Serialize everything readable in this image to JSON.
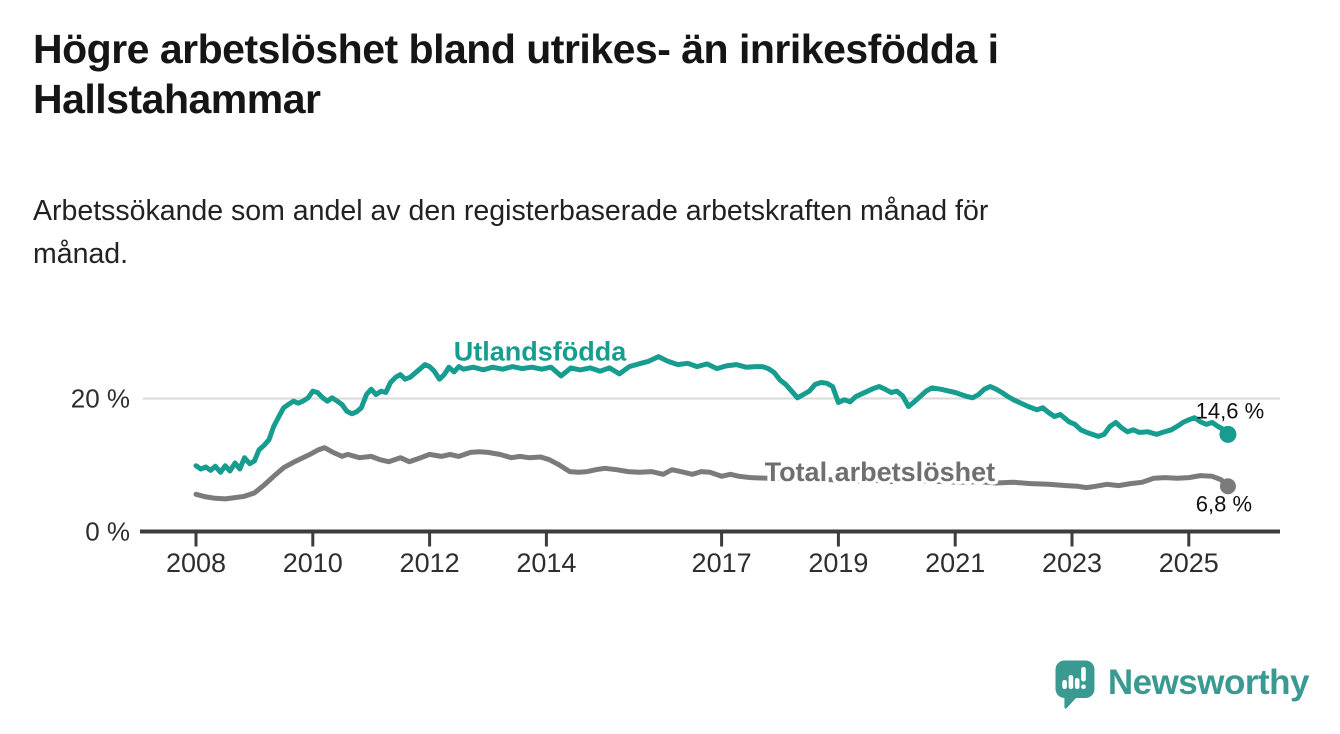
{
  "header": {
    "title": "Högre arbetslöshet bland utrikes- än inrikesfödda i\nHallstahammar",
    "subtitle": "Arbetssökande som andel av den registerbaserade arbetskraften månad för\nmånad."
  },
  "footer": {
    "brand": "Newsworthy"
  },
  "colors": {
    "teal": "#179d8f",
    "gray": "#7b7b7b",
    "gray_label": "#6f6f6f",
    "axis": "#3c3c3c",
    "grid": "#d9d9d9",
    "brand_teal": "#3a9a91",
    "text_dark": "#151515"
  },
  "chart_data": {
    "type": "line",
    "x_axis": {
      "ticks": [
        {
          "year": 2008,
          "label": "2008"
        },
        {
          "year": 2010,
          "label": "2010"
        },
        {
          "year": 2012,
          "label": "2012"
        },
        {
          "year": 2014,
          "label": "2014"
        },
        {
          "year": 2017,
          "label": "2017"
        },
        {
          "year": 2019,
          "label": "2019"
        },
        {
          "year": 2021,
          "label": "2021"
        },
        {
          "year": 2023,
          "label": "2023"
        },
        {
          "year": 2025,
          "label": "2025"
        }
      ]
    },
    "y_axis": {
      "unit": "%",
      "ticks": [
        {
          "value": 0,
          "label": "0 %"
        },
        {
          "value": 20,
          "label": "20 %"
        }
      ],
      "range": [
        0,
        29
      ]
    },
    "grid": "horizontal-20-only",
    "legend_position": "inline-labels",
    "series": [
      {
        "name": "Utlandsfödda",
        "color": "#179d8f",
        "end_value": 14.6,
        "end_label": "14,6 %",
        "label_anchor": {
          "x": 2013.89,
          "y": 25.7
        },
        "points": [
          [
            2008.0,
            9.9
          ],
          [
            2008.08,
            9.4
          ],
          [
            2008.17,
            9.7
          ],
          [
            2008.25,
            9.2
          ],
          [
            2008.33,
            9.8
          ],
          [
            2008.42,
            8.9
          ],
          [
            2008.5,
            9.9
          ],
          [
            2008.58,
            9.1
          ],
          [
            2008.67,
            10.3
          ],
          [
            2008.75,
            9.4
          ],
          [
            2008.83,
            11.1
          ],
          [
            2008.92,
            10.2
          ],
          [
            2009.0,
            10.6
          ],
          [
            2009.08,
            12.3
          ],
          [
            2009.17,
            13.0
          ],
          [
            2009.25,
            13.8
          ],
          [
            2009.33,
            15.8
          ],
          [
            2009.42,
            17.3
          ],
          [
            2009.5,
            18.6
          ],
          [
            2009.58,
            19.1
          ],
          [
            2009.67,
            19.6
          ],
          [
            2009.75,
            19.3
          ],
          [
            2009.83,
            19.6
          ],
          [
            2009.92,
            20.1
          ],
          [
            2010.0,
            21.1
          ],
          [
            2010.08,
            20.9
          ],
          [
            2010.17,
            20.1
          ],
          [
            2010.25,
            19.6
          ],
          [
            2010.33,
            20.1
          ],
          [
            2010.42,
            19.6
          ],
          [
            2010.5,
            19.1
          ],
          [
            2010.58,
            18.1
          ],
          [
            2010.67,
            17.7
          ],
          [
            2010.75,
            18.0
          ],
          [
            2010.83,
            18.6
          ],
          [
            2010.92,
            20.6
          ],
          [
            2011.0,
            21.4
          ],
          [
            2011.08,
            20.6
          ],
          [
            2011.17,
            21.1
          ],
          [
            2011.25,
            20.9
          ],
          [
            2011.33,
            22.4
          ],
          [
            2011.42,
            23.2
          ],
          [
            2011.5,
            23.6
          ],
          [
            2011.58,
            22.9
          ],
          [
            2011.67,
            23.2
          ],
          [
            2011.75,
            23.8
          ],
          [
            2011.83,
            24.4
          ],
          [
            2011.92,
            25.1
          ],
          [
            2012.0,
            24.8
          ],
          [
            2012.08,
            24.1
          ],
          [
            2012.17,
            22.9
          ],
          [
            2012.25,
            23.6
          ],
          [
            2012.33,
            24.7
          ],
          [
            2012.42,
            24.0
          ],
          [
            2012.5,
            24.8
          ],
          [
            2012.58,
            24.4
          ],
          [
            2012.75,
            24.7
          ],
          [
            2012.92,
            24.3
          ],
          [
            2013.08,
            24.7
          ],
          [
            2013.25,
            24.4
          ],
          [
            2013.42,
            24.8
          ],
          [
            2013.58,
            24.5
          ],
          [
            2013.75,
            24.7
          ],
          [
            2013.92,
            24.4
          ],
          [
            2014.08,
            24.7
          ],
          [
            2014.25,
            23.4
          ],
          [
            2014.42,
            24.6
          ],
          [
            2014.58,
            24.3
          ],
          [
            2014.75,
            24.6
          ],
          [
            2014.92,
            24.1
          ],
          [
            2015.08,
            24.6
          ],
          [
            2015.25,
            23.7
          ],
          [
            2015.42,
            24.8
          ],
          [
            2015.58,
            25.2
          ],
          [
            2015.75,
            25.6
          ],
          [
            2015.92,
            26.3
          ],
          [
            2016.08,
            25.6
          ],
          [
            2016.25,
            25.1
          ],
          [
            2016.42,
            25.3
          ],
          [
            2016.58,
            24.8
          ],
          [
            2016.75,
            25.2
          ],
          [
            2016.92,
            24.5
          ],
          [
            2017.08,
            24.9
          ],
          [
            2017.25,
            25.1
          ],
          [
            2017.42,
            24.7
          ],
          [
            2017.58,
            24.8
          ],
          [
            2017.7,
            24.8
          ],
          [
            2017.8,
            24.5
          ],
          [
            2017.9,
            23.9
          ],
          [
            2018.0,
            22.8
          ],
          [
            2018.1,
            22.1
          ],
          [
            2018.2,
            21.1
          ],
          [
            2018.3,
            20.1
          ],
          [
            2018.4,
            20.6
          ],
          [
            2018.5,
            21.1
          ],
          [
            2018.6,
            22.1
          ],
          [
            2018.7,
            22.4
          ],
          [
            2018.8,
            22.3
          ],
          [
            2018.9,
            21.8
          ],
          [
            2019.0,
            19.4
          ],
          [
            2019.1,
            19.8
          ],
          [
            2019.2,
            19.5
          ],
          [
            2019.3,
            20.3
          ],
          [
            2019.4,
            20.7
          ],
          [
            2019.5,
            21.1
          ],
          [
            2019.6,
            21.5
          ],
          [
            2019.7,
            21.8
          ],
          [
            2019.8,
            21.4
          ],
          [
            2019.9,
            20.9
          ],
          [
            2020.0,
            21.1
          ],
          [
            2020.1,
            20.4
          ],
          [
            2020.2,
            18.8
          ],
          [
            2020.3,
            19.5
          ],
          [
            2020.4,
            20.3
          ],
          [
            2020.5,
            21.1
          ],
          [
            2020.6,
            21.6
          ],
          [
            2020.75,
            21.4
          ],
          [
            2020.9,
            21.1
          ],
          [
            2021.0,
            20.9
          ],
          [
            2021.1,
            20.6
          ],
          [
            2021.2,
            20.3
          ],
          [
            2021.3,
            20.1
          ],
          [
            2021.4,
            20.6
          ],
          [
            2021.5,
            21.4
          ],
          [
            2021.6,
            21.8
          ],
          [
            2021.7,
            21.4
          ],
          [
            2021.8,
            20.9
          ],
          [
            2021.9,
            20.3
          ],
          [
            2022.0,
            19.8
          ],
          [
            2022.1,
            19.4
          ],
          [
            2022.25,
            18.8
          ],
          [
            2022.4,
            18.3
          ],
          [
            2022.5,
            18.6
          ],
          [
            2022.6,
            17.9
          ],
          [
            2022.7,
            17.3
          ],
          [
            2022.8,
            17.6
          ],
          [
            2022.95,
            16.5
          ],
          [
            2023.05,
            16.1
          ],
          [
            2023.15,
            15.3
          ],
          [
            2023.25,
            14.9
          ],
          [
            2023.35,
            14.6
          ],
          [
            2023.45,
            14.3
          ],
          [
            2023.55,
            14.6
          ],
          [
            2023.65,
            15.8
          ],
          [
            2023.75,
            16.4
          ],
          [
            2023.85,
            15.6
          ],
          [
            2023.95,
            15.0
          ],
          [
            2024.05,
            15.3
          ],
          [
            2024.15,
            14.9
          ],
          [
            2024.3,
            15.0
          ],
          [
            2024.45,
            14.6
          ],
          [
            2024.55,
            14.9
          ],
          [
            2024.7,
            15.3
          ],
          [
            2024.8,
            15.8
          ],
          [
            2024.9,
            16.4
          ],
          [
            2025.0,
            16.8
          ],
          [
            2025.1,
            17.1
          ],
          [
            2025.2,
            16.5
          ],
          [
            2025.3,
            16.1
          ],
          [
            2025.4,
            16.4
          ],
          [
            2025.5,
            15.8
          ],
          [
            2025.58,
            15.4
          ],
          [
            2025.67,
            14.6
          ]
        ]
      },
      {
        "name": "Total arbetslöshet",
        "color": "#7b7b7b",
        "label_color": "#6f6f6f",
        "end_value": 6.8,
        "end_label": "6,8 %",
        "label_anchor": {
          "x": 2019.71,
          "y": 7.6
        },
        "points": [
          [
            2008.0,
            5.6
          ],
          [
            2008.17,
            5.2
          ],
          [
            2008.33,
            5.0
          ],
          [
            2008.5,
            4.9
          ],
          [
            2008.67,
            5.1
          ],
          [
            2008.83,
            5.3
          ],
          [
            2009.0,
            5.8
          ],
          [
            2009.17,
            7.0
          ],
          [
            2009.33,
            8.3
          ],
          [
            2009.5,
            9.6
          ],
          [
            2009.67,
            10.4
          ],
          [
            2009.83,
            11.1
          ],
          [
            2009.95,
            11.6
          ],
          [
            2010.1,
            12.3
          ],
          [
            2010.2,
            12.6
          ],
          [
            2010.35,
            11.9
          ],
          [
            2010.5,
            11.3
          ],
          [
            2010.6,
            11.6
          ],
          [
            2010.8,
            11.1
          ],
          [
            2011.0,
            11.3
          ],
          [
            2011.15,
            10.8
          ],
          [
            2011.3,
            10.5
          ],
          [
            2011.5,
            11.1
          ],
          [
            2011.65,
            10.5
          ],
          [
            2011.85,
            11.1
          ],
          [
            2012.0,
            11.6
          ],
          [
            2012.2,
            11.3
          ],
          [
            2012.35,
            11.6
          ],
          [
            2012.5,
            11.3
          ],
          [
            2012.7,
            11.9
          ],
          [
            2012.85,
            12.0
          ],
          [
            2013.0,
            11.9
          ],
          [
            2013.2,
            11.6
          ],
          [
            2013.4,
            11.1
          ],
          [
            2013.55,
            11.3
          ],
          [
            2013.7,
            11.1
          ],
          [
            2013.9,
            11.2
          ],
          [
            2014.05,
            10.8
          ],
          [
            2014.2,
            10.1
          ],
          [
            2014.4,
            9.0
          ],
          [
            2014.55,
            8.9
          ],
          [
            2014.7,
            9.0
          ],
          [
            2014.85,
            9.3
          ],
          [
            2015.0,
            9.5
          ],
          [
            2015.2,
            9.3
          ],
          [
            2015.4,
            9.0
          ],
          [
            2015.6,
            8.9
          ],
          [
            2015.8,
            9.0
          ],
          [
            2016.0,
            8.6
          ],
          [
            2016.15,
            9.3
          ],
          [
            2016.3,
            9.0
          ],
          [
            2016.5,
            8.6
          ],
          [
            2016.65,
            9.0
          ],
          [
            2016.8,
            8.9
          ],
          [
            2017.0,
            8.3
          ],
          [
            2017.15,
            8.6
          ],
          [
            2017.3,
            8.3
          ],
          [
            2017.5,
            8.1
          ],
          [
            2017.8,
            8.0
          ],
          [
            2018.1,
            7.9
          ],
          [
            2018.4,
            7.8
          ],
          [
            2018.7,
            7.9
          ],
          [
            2019.0,
            7.7
          ],
          [
            2019.3,
            7.6
          ],
          [
            2019.6,
            7.7
          ],
          [
            2019.9,
            7.5
          ],
          [
            2020.2,
            7.8
          ],
          [
            2020.5,
            7.6
          ],
          [
            2020.8,
            7.5
          ],
          [
            2021.1,
            7.4
          ],
          [
            2021.4,
            7.5
          ],
          [
            2021.7,
            7.3
          ],
          [
            2022.0,
            7.4
          ],
          [
            2022.3,
            7.2
          ],
          [
            2022.6,
            7.1
          ],
          [
            2022.9,
            6.9
          ],
          [
            2023.1,
            6.8
          ],
          [
            2023.25,
            6.6
          ],
          [
            2023.4,
            6.8
          ],
          [
            2023.6,
            7.1
          ],
          [
            2023.8,
            6.9
          ],
          [
            2024.0,
            7.2
          ],
          [
            2024.2,
            7.4
          ],
          [
            2024.4,
            8.0
          ],
          [
            2024.6,
            8.1
          ],
          [
            2024.8,
            8.0
          ],
          [
            2025.0,
            8.1
          ],
          [
            2025.2,
            8.4
          ],
          [
            2025.4,
            8.3
          ],
          [
            2025.55,
            7.8
          ],
          [
            2025.67,
            6.8
          ]
        ]
      }
    ]
  }
}
